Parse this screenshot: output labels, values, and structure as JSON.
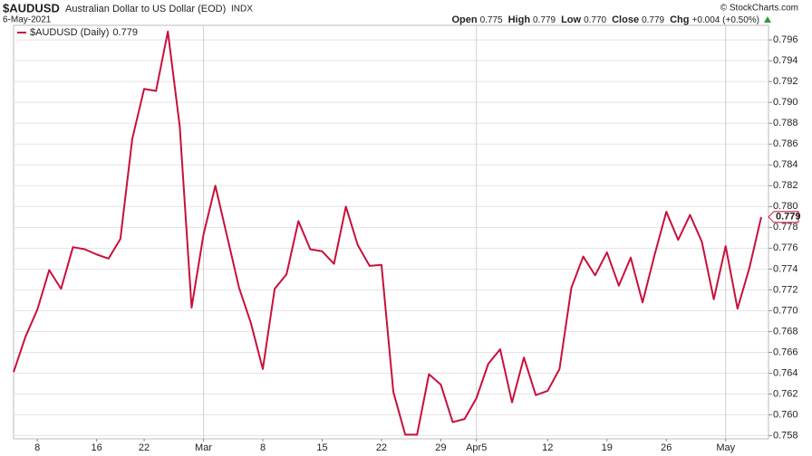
{
  "chart_data": {
    "type": "line",
    "symbol": "$AUDUSD",
    "title": "Australian Dollar to US Dollar (EOD)",
    "exchange": "INDX",
    "date": "6-May-2021",
    "credit": "© StockCharts.com",
    "quote": [
      {
        "label": "Open",
        "value": "0.775"
      },
      {
        "label": "High",
        "value": "0.779"
      },
      {
        "label": "Low",
        "value": "0.770"
      },
      {
        "label": "Close",
        "value": "0.779"
      },
      {
        "label": "Chg",
        "value": "+0.004 (+0.50%)"
      }
    ],
    "categories": [
      null,
      null,
      "8",
      null,
      null,
      null,
      null,
      "16",
      null,
      null,
      null,
      "22",
      null,
      null,
      null,
      null,
      "Mar",
      null,
      null,
      null,
      null,
      "8",
      null,
      null,
      null,
      null,
      "15",
      null,
      null,
      null,
      null,
      "22",
      null,
      null,
      null,
      null,
      "29",
      null,
      null,
      "Apr5",
      null,
      null,
      null,
      null,
      null,
      "12",
      null,
      null,
      null,
      null,
      "19",
      null,
      null,
      null,
      null,
      "26",
      null,
      null,
      null,
      null,
      "May",
      null,
      null,
      null
    ],
    "series": [
      {
        "name": "$AUDUSD (Daily)",
        "color": "#c8103c",
        "values": [
          0.7641,
          0.7675,
          0.7701,
          0.7739,
          0.7721,
          0.7761,
          0.7759,
          0.7754,
          0.775,
          0.7769,
          0.7865,
          0.7913,
          0.7911,
          0.7968,
          0.7877,
          0.7703,
          0.7773,
          0.782,
          0.7771,
          0.7722,
          0.7688,
          0.7644,
          0.7721,
          0.7735,
          0.7786,
          0.7759,
          0.7757,
          0.7745,
          0.78,
          0.7763,
          0.7743,
          0.7744,
          0.7622,
          0.7581,
          0.7581,
          0.7639,
          0.7629,
          0.7593,
          0.7596,
          0.7616,
          0.7649,
          0.7663,
          0.7612,
          0.7655,
          0.7619,
          0.7623,
          0.7644,
          0.7722,
          0.7752,
          0.7734,
          0.7756,
          0.7724,
          0.7751,
          0.7708,
          0.7753,
          0.7795,
          0.7768,
          0.7792,
          0.7766,
          0.7711,
          0.7762,
          0.7702,
          0.7741,
          0.779
        ]
      }
    ],
    "ylim": [
      0.7577,
      0.7974
    ],
    "yticks": [
      0.758,
      {
        "value": 0.76,
        "label": "0.760"
      },
      0.762,
      0.764,
      0.766,
      0.768,
      {
        "value": 0.77,
        "label": "0.770"
      },
      0.772,
      0.774,
      0.776,
      0.778,
      {
        "value": 0.78,
        "label": "0.780"
      },
      0.782,
      0.784,
      0.786,
      0.788,
      {
        "value": 0.79,
        "label": "0.790"
      },
      0.792,
      0.794,
      0.796
    ],
    "grid": true
  }
}
